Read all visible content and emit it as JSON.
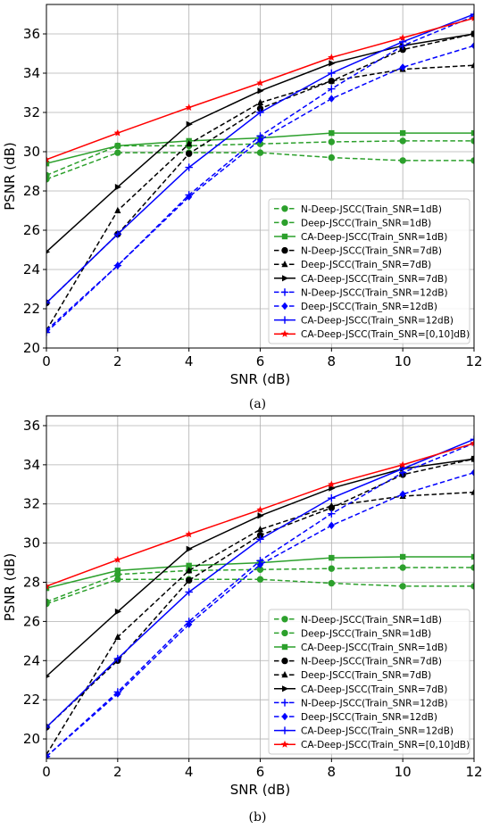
{
  "chart_data": [
    {
      "type": "line",
      "caption": "(a)",
      "xlabel": "SNR (dB)",
      "ylabel": "PSNR (dB)",
      "xlim": [
        0,
        12
      ],
      "ylim": [
        20,
        37.5
      ],
      "x": [
        0,
        2,
        4,
        6,
        8,
        10,
        12
      ],
      "xticks": [
        0,
        2,
        4,
        6,
        8,
        10,
        12
      ],
      "yticks": [
        20,
        22,
        24,
        26,
        28,
        30,
        32,
        34,
        36
      ],
      "grid": true,
      "legend_position": "lower right",
      "series": [
        {
          "name": "N-Deep-JSCC(Train_SNR=1dB)",
          "color": "#2ca02c",
          "style": "dashed",
          "marker": "circle",
          "values": [
            28.8,
            30.3,
            30.3,
            30.4,
            30.5,
            30.55,
            30.55
          ]
        },
        {
          "name": "Deep-JSCC(Train_SNR=1dB)",
          "color": "#2ca02c",
          "style": "dashed",
          "marker": "circle",
          "values": [
            28.6,
            29.95,
            29.95,
            29.95,
            29.7,
            29.55,
            29.55
          ]
        },
        {
          "name": "CA-Deep-JSCC(Train_SNR=1dB)",
          "color": "#2ca02c",
          "style": "solid",
          "marker": "square",
          "values": [
            29.4,
            30.3,
            30.55,
            30.7,
            30.95,
            30.95,
            30.95
          ]
        },
        {
          "name": "N-Deep-JSCC(Train_SNR=7dB)",
          "color": "#000000",
          "style": "dashed",
          "marker": "circle",
          "values": [
            22.3,
            25.8,
            29.9,
            32.2,
            33.6,
            35.2,
            36.0
          ]
        },
        {
          "name": "Deep-JSCC(Train_SNR=7dB)",
          "color": "#000000",
          "style": "dashed",
          "marker": "triangle",
          "values": [
            20.9,
            27.0,
            30.4,
            32.5,
            33.6,
            34.2,
            34.4
          ]
        },
        {
          "name": "CA-Deep-JSCC(Train_SNR=7dB)",
          "color": "#000000",
          "style": "solid",
          "marker": "triangle-right",
          "values": [
            24.9,
            28.2,
            31.4,
            33.1,
            34.5,
            35.4,
            36.0
          ]
        },
        {
          "name": "N-Deep-JSCC(Train_SNR=12dB)",
          "color": "#0000ff",
          "style": "dashed",
          "marker": "plus",
          "values": [
            20.8,
            24.2,
            27.8,
            30.8,
            33.2,
            35.4,
            36.9
          ]
        },
        {
          "name": "Deep-JSCC(Train_SNR=12dB)",
          "color": "#0000ff",
          "style": "dashed",
          "marker": "diamond",
          "values": [
            20.9,
            24.2,
            27.7,
            30.6,
            32.7,
            34.3,
            35.4
          ]
        },
        {
          "name": "CA-Deep-JSCC(Train_SNR=12dB)",
          "color": "#0000ff",
          "style": "solid",
          "marker": "plus",
          "values": [
            22.3,
            25.8,
            29.2,
            32.0,
            34.0,
            35.6,
            37.0
          ]
        },
        {
          "name": "CA-Deep-JSCC(Train_SNR=[0,10]dB)",
          "color": "#ff0000",
          "style": "solid",
          "marker": "star",
          "values": [
            29.6,
            30.95,
            32.25,
            33.5,
            34.8,
            35.8,
            36.8
          ]
        }
      ]
    },
    {
      "type": "line",
      "caption": "(b)",
      "xlabel": "SNR (dB)",
      "ylabel": "PSNR (dB)",
      "xlim": [
        0,
        12
      ],
      "ylim": [
        19,
        36.5
      ],
      "x": [
        0,
        2,
        4,
        6,
        8,
        10,
        12
      ],
      "xticks": [
        0,
        2,
        4,
        6,
        8,
        10,
        12
      ],
      "yticks": [
        20,
        22,
        24,
        26,
        28,
        30,
        32,
        34,
        36
      ],
      "grid": true,
      "legend_position": "lower right",
      "series": [
        {
          "name": "N-Deep-JSCC(Train_SNR=1dB)",
          "color": "#2ca02c",
          "style": "dashed",
          "marker": "circle",
          "values": [
            27.0,
            28.4,
            28.6,
            28.65,
            28.7,
            28.75,
            28.75
          ]
        },
        {
          "name": "Deep-JSCC(Train_SNR=1dB)",
          "color": "#2ca02c",
          "style": "dashed",
          "marker": "circle",
          "values": [
            26.9,
            28.15,
            28.15,
            28.15,
            27.95,
            27.8,
            27.8
          ]
        },
        {
          "name": "CA-Deep-JSCC(Train_SNR=1dB)",
          "color": "#2ca02c",
          "style": "solid",
          "marker": "square",
          "values": [
            27.7,
            28.6,
            28.85,
            29.0,
            29.25,
            29.3,
            29.3
          ]
        },
        {
          "name": "N-Deep-JSCC(Train_SNR=7dB)",
          "color": "#000000",
          "style": "dashed",
          "marker": "circle",
          "values": [
            20.6,
            24.0,
            28.1,
            30.4,
            31.8,
            33.5,
            34.3
          ]
        },
        {
          "name": "Deep-JSCC(Train_SNR=7dB)",
          "color": "#000000",
          "style": "dashed",
          "marker": "triangle",
          "values": [
            19.2,
            25.2,
            28.6,
            30.7,
            31.9,
            32.4,
            32.6
          ]
        },
        {
          "name": "CA-Deep-JSCC(Train_SNR=7dB)",
          "color": "#000000",
          "style": "solid",
          "marker": "triangle-right",
          "values": [
            23.2,
            26.5,
            29.7,
            31.4,
            32.8,
            33.8,
            34.3
          ]
        },
        {
          "name": "N-Deep-JSCC(Train_SNR=12dB)",
          "color": "#0000ff",
          "style": "dashed",
          "marker": "plus",
          "values": [
            19.1,
            22.4,
            26.0,
            29.1,
            31.5,
            33.6,
            35.1
          ]
        },
        {
          "name": "Deep-JSCC(Train_SNR=12dB)",
          "color": "#0000ff",
          "style": "dashed",
          "marker": "diamond",
          "values": [
            19.1,
            22.3,
            25.85,
            28.9,
            30.9,
            32.5,
            33.6
          ]
        },
        {
          "name": "CA-Deep-JSCC(Train_SNR=12dB)",
          "color": "#0000ff",
          "style": "solid",
          "marker": "plus",
          "values": [
            20.6,
            24.1,
            27.5,
            30.2,
            32.3,
            33.8,
            35.3
          ]
        },
        {
          "name": "CA-Deep-JSCC(Train_SNR=[0,10]dB)",
          "color": "#ff0000",
          "style": "solid",
          "marker": "star",
          "values": [
            27.8,
            29.15,
            30.45,
            31.7,
            33.0,
            34.0,
            35.1
          ]
        }
      ]
    }
  ]
}
